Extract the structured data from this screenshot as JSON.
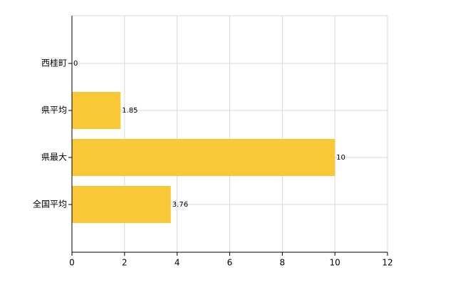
{
  "chart_data": {
    "type": "barh",
    "categories": [
      "西桂町",
      "県平均",
      "県最大",
      "全国平均"
    ],
    "values": [
      0,
      1.85,
      10,
      3.76
    ],
    "color": "#f9c837",
    "xlim": [
      0,
      12
    ],
    "xticks": [
      0,
      2,
      4,
      6,
      8,
      10,
      12
    ],
    "grid": true
  }
}
